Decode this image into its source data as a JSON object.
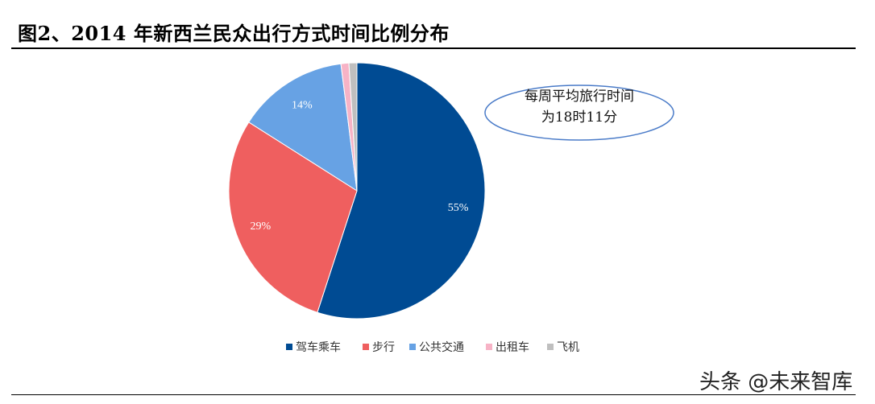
{
  "chart_data": {
    "type": "pie",
    "title": "图2、2014 年新西兰民众出行方式时间比例分布",
    "categories": [
      "驾车乘车",
      "步行",
      "公共交通",
      "出租车",
      "飞机"
    ],
    "values": [
      55,
      29,
      14,
      1,
      1
    ],
    "data_labels": [
      "55%",
      "29%",
      "14%",
      "",
      ""
    ],
    "colors": [
      "#004b93",
      "#ef5f5f",
      "#67a2e4",
      "#f7b3c6",
      "#bfbfbf"
    ],
    "legend_position": "bottom",
    "start_angle_deg": 0,
    "direction": "clockwise",
    "annotation": {
      "lines": [
        "每周平均旅行时间",
        "为18时11分"
      ]
    }
  },
  "watermark": "头条 @未来智库"
}
